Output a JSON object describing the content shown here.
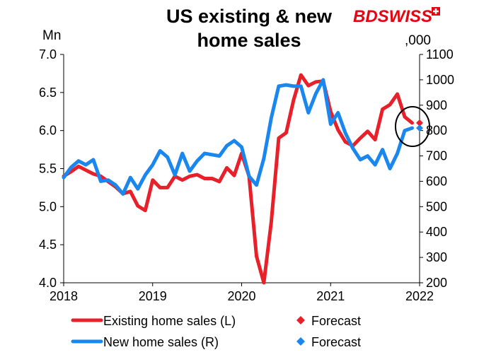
{
  "brand": {
    "name_part1": "BD",
    "name_part2": "SWISS",
    "color": "#e30613"
  },
  "chart_data": {
    "type": "line",
    "title_line1": "US existing & new",
    "title_line2": "home sales",
    "ylabel_left": "Mn",
    "ylabel_right": ",000",
    "ylim_left": [
      4.0,
      7.0
    ],
    "ylim_right": [
      200,
      1100
    ],
    "yticks_left": [
      "4.0",
      "4.5",
      "5.0",
      "5.5",
      "6.0",
      "6.5",
      "7.0"
    ],
    "yticks_right": [
      "200",
      "300",
      "400",
      "500",
      "600",
      "700",
      "800",
      "900",
      "1000",
      "1100"
    ],
    "xticks": [
      "2018",
      "2019",
      "2020",
      "2021",
      "2022"
    ],
    "grid": false,
    "series": [
      {
        "name": "Existing home sales (L)",
        "axis": "left",
        "color": "#e8202a",
        "x": [
          "2018-01",
          "2018-02",
          "2018-03",
          "2018-04",
          "2018-05",
          "2018-06",
          "2018-07",
          "2018-08",
          "2018-09",
          "2018-10",
          "2018-11",
          "2018-12",
          "2019-01",
          "2019-02",
          "2019-03",
          "2019-04",
          "2019-05",
          "2019-06",
          "2019-07",
          "2019-08",
          "2019-09",
          "2019-10",
          "2019-11",
          "2019-12",
          "2020-01",
          "2020-02",
          "2020-03",
          "2020-04",
          "2020-05",
          "2020-06",
          "2020-07",
          "2020-08",
          "2020-09",
          "2020-10",
          "2020-11",
          "2020-12",
          "2021-01",
          "2021-02",
          "2021-03",
          "2021-04",
          "2021-05",
          "2021-06",
          "2021-07",
          "2021-08",
          "2021-09",
          "2021-10",
          "2021-11",
          "2021-12"
        ],
        "values": [
          5.4,
          5.46,
          5.53,
          5.48,
          5.43,
          5.4,
          5.33,
          5.26,
          5.17,
          5.2,
          5.01,
          4.95,
          5.35,
          5.25,
          5.25,
          5.4,
          5.35,
          5.4,
          5.42,
          5.37,
          5.37,
          5.33,
          5.51,
          5.41,
          5.7,
          5.4,
          4.35,
          4.0,
          4.8,
          5.9,
          5.97,
          6.4,
          6.73,
          6.59,
          6.64,
          6.65,
          6.25,
          6.01,
          5.85,
          5.8,
          5.9,
          5.99,
          5.88,
          6.28,
          6.34,
          6.48,
          6.18,
          6.1
        ]
      },
      {
        "name": "New home sales (R)",
        "axis": "right",
        "color": "#1a87ef",
        "x": [
          "2018-01",
          "2018-02",
          "2018-03",
          "2018-04",
          "2018-05",
          "2018-06",
          "2018-07",
          "2018-08",
          "2018-09",
          "2018-10",
          "2018-11",
          "2018-12",
          "2019-01",
          "2019-02",
          "2019-03",
          "2019-04",
          "2019-05",
          "2019-06",
          "2019-07",
          "2019-08",
          "2019-09",
          "2019-10",
          "2019-11",
          "2019-12",
          "2020-01",
          "2020-02",
          "2020-03",
          "2020-04",
          "2020-05",
          "2020-06",
          "2020-07",
          "2020-08",
          "2020-09",
          "2020-10",
          "2020-11",
          "2020-12",
          "2021-01",
          "2021-02",
          "2021-03",
          "2021-04",
          "2021-05",
          "2021-06",
          "2021-07",
          "2021-08",
          "2021-09",
          "2021-10",
          "2021-11",
          "2021-12"
        ],
        "values": [
          615,
          655,
          680,
          665,
          685,
          600,
          605,
          585,
          550,
          615,
          570,
          625,
          665,
          720,
          695,
          625,
          710,
          640,
          680,
          710,
          705,
          700,
          740,
          760,
          735,
          620,
          585,
          690,
          850,
          975,
          980,
          975,
          975,
          870,
          945,
          1000,
          825,
          870,
          790,
          730,
          685,
          700,
          665,
          725,
          650,
          710,
          800,
          810
        ]
      }
    ],
    "forecast": [
      {
        "name": "Forecast",
        "axis": "left",
        "color": "#e8202a",
        "x": "2022-01",
        "value": 6.1
      },
      {
        "name": "Forecast",
        "axis": "right",
        "color": "#1a87ef",
        "x": "2022-01",
        "value": 810
      }
    ],
    "legend": [
      {
        "label": "Existing home sales (L)",
        "kind": "line",
        "color": "#e8202a"
      },
      {
        "label": "Forecast",
        "kind": "diamond",
        "color": "#e8202a"
      },
      {
        "label": "New home sales (R)",
        "kind": "line",
        "color": "#1a87ef"
      },
      {
        "label": "Forecast",
        "kind": "diamond",
        "color": "#1a87ef"
      }
    ],
    "legend_position": "bottom"
  }
}
